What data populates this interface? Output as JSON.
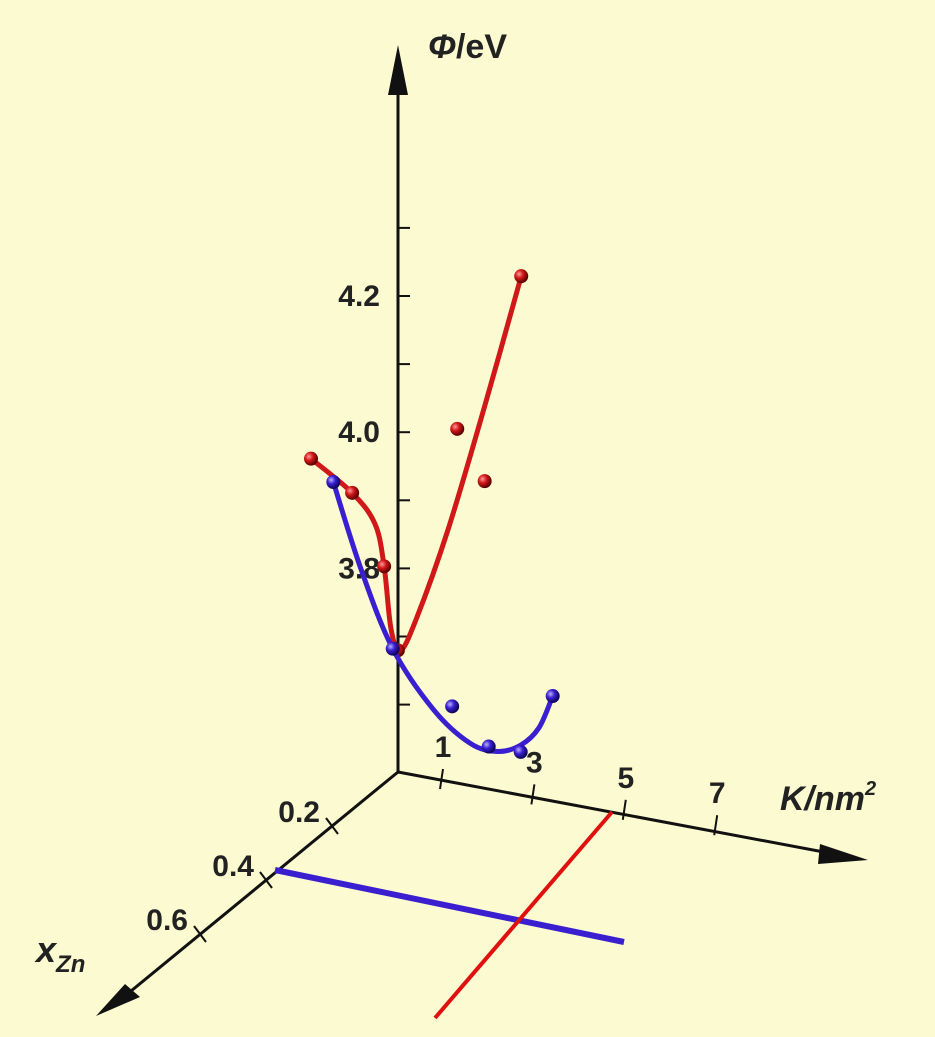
{
  "chart_data": {
    "type": "line",
    "projection": "3d",
    "axes": {
      "phi": {
        "label_symbol": "Φ",
        "label_unit": "/eV",
        "ticks": [
          "4.2",
          "4.0",
          "3.8"
        ],
        "range": [
          3.6,
          4.5
        ]
      },
      "k": {
        "label_main": "K/nm",
        "label_sup": "2",
        "ticks": [
          "1",
          "3",
          "5",
          "7"
        ],
        "range": [
          0,
          9
        ]
      },
      "x": {
        "label_main": "x",
        "label_sub": "Zn",
        "ticks": [
          "0.2",
          "0.4",
          "0.6"
        ],
        "range": [
          0,
          0.8
        ]
      }
    },
    "series": [
      {
        "color": "#d01818",
        "x_zn": 0.4,
        "points": [
          {
            "k": 1.0,
            "phi": 4.13
          },
          {
            "k": 1.9,
            "phi": 4.09
          },
          {
            "k": 2.6,
            "phi": 3.99
          },
          {
            "k": 2.9,
            "phi": 3.87
          },
          {
            "k": 4.2,
            "phi": 4.21
          },
          {
            "k": 4.8,
            "phi": 4.14
          },
          {
            "k": 5.6,
            "phi": 4.45
          }
        ],
        "curve": [
          {
            "k": 1.0,
            "phi": 4.13
          },
          {
            "k": 1.9,
            "phi": 4.09
          },
          {
            "k": 2.4,
            "phi": 4.05
          },
          {
            "k": 2.6,
            "phi": 3.99
          },
          {
            "k": 2.75,
            "phi": 3.9
          },
          {
            "k": 2.95,
            "phi": 3.87
          },
          {
            "k": 3.3,
            "phi": 3.92
          },
          {
            "k": 4.0,
            "phi": 4.06
          },
          {
            "k": 4.8,
            "phi": 4.25
          },
          {
            "k": 5.6,
            "phi": 4.45
          }
        ]
      },
      {
        "color": "#3a1fd0",
        "x_zn": 0.0,
        "points": [
          {
            "k": -1.4,
            "phi": 3.91
          },
          {
            "k": -0.1,
            "phi": 3.68
          },
          {
            "k": 1.2,
            "phi": 3.61
          },
          {
            "k": 2.0,
            "phi": 3.56
          },
          {
            "k": 2.7,
            "phi": 3.56
          },
          {
            "k": 3.4,
            "phi": 3.65
          }
        ],
        "curve": [
          {
            "k": -1.4,
            "phi": 3.91
          },
          {
            "k": -0.8,
            "phi": 3.79
          },
          {
            "k": -0.1,
            "phi": 3.68
          },
          {
            "k": 0.8,
            "phi": 3.6
          },
          {
            "k": 1.6,
            "phi": 3.56
          },
          {
            "k": 2.2,
            "phi": 3.555
          },
          {
            "k": 2.7,
            "phi": 3.57
          },
          {
            "k": 3.1,
            "phi": 3.6
          },
          {
            "k": 3.4,
            "phi": 3.65
          }
        ]
      }
    ]
  }
}
